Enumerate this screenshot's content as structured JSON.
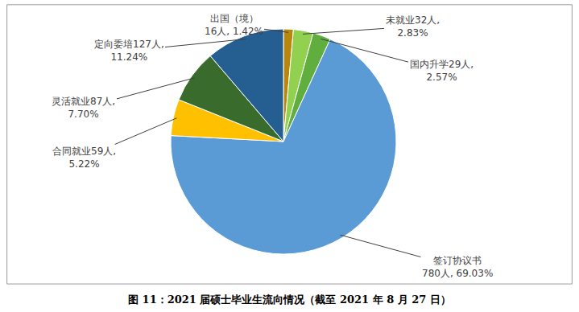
{
  "chart_data": {
    "type": "pie",
    "title": "图 11：2021 届硕士毕业生流向情况（截至 2021 年 8 月 27 日）",
    "categories": [
      "出国（境）",
      "未就业",
      "国内升学",
      "签订协议书",
      "合同就业",
      "灵活就业",
      "定向委培"
    ],
    "values": [
      16,
      32,
      29,
      780,
      59,
      87,
      127
    ],
    "value_labels": [
      "出国（境）\n16人, 1.42%",
      "未就业32人,\n2.83%",
      "国内升学29人,\n2.57%",
      "签订协议书\n780人, 69.03%",
      "合同就业59人,\n5.22%",
      "灵活就业87人,\n7.70%",
      "定向委培127人,\n11.24%"
    ],
    "colors": [
      "#b8860b",
      "#92d050",
      "#5fae3e",
      "#5b9bd5",
      "#ffc000",
      "#386b2c",
      "#255e91"
    ],
    "data_labels": true
  }
}
